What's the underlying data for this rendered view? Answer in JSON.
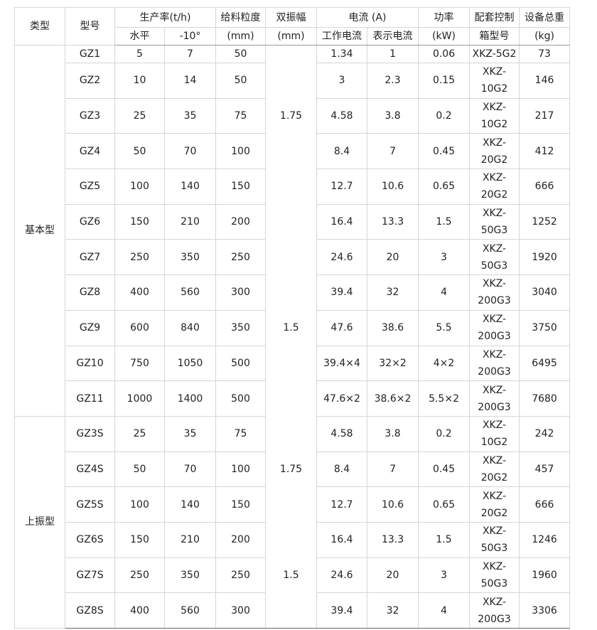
{
  "header": {
    "type": "类型",
    "model": "型号",
    "capacity": "生产率(t/h)",
    "cap_h": "水平",
    "cap_10": "-10°",
    "feed": "给料粒度",
    "feed_unit": "(mm)",
    "amp": "双振幅",
    "amp_unit": "(mm)",
    "current": "电流 (A)",
    "cur_work": "工作电流",
    "cur_ind": "表示电流",
    "power": "功率",
    "power_unit": "(kW)",
    "ctrl": "配套控制",
    "ctrl2": "箱型号",
    "weight": "设备总重",
    "weight_unit": "(kg)"
  },
  "groups": [
    {
      "type": "基本型",
      "rows": [
        [
          "GZ1",
          "5",
          "7",
          "50",
          "",
          "1.34",
          "1",
          "0.06",
          "XKZ-5G2",
          "73"
        ],
        [
          "GZ2",
          "10",
          "14",
          "50",
          "",
          "3",
          "2.3",
          "0.15",
          "XKZ-\n10G2",
          "146"
        ],
        [
          "GZ3",
          "25",
          "35",
          "75",
          "1.75",
          "4.58",
          "3.8",
          "0.2",
          "XKZ-\n10G2",
          "217"
        ],
        [
          "GZ4",
          "50",
          "70",
          "100",
          "",
          "8.4",
          "7",
          "0.45",
          "XKZ-\n20G2",
          "412"
        ],
        [
          "GZ5",
          "100",
          "140",
          "150",
          "",
          "12.7",
          "10.6",
          "0.65",
          "XKZ-\n20G2",
          "666"
        ],
        [
          "GZ6",
          "150",
          "210",
          "200",
          "",
          "16.4",
          "13.3",
          "1.5",
          "XKZ-\n50G3",
          "1252"
        ],
        [
          "GZ7",
          "250",
          "350",
          "250",
          "",
          "24.6",
          "20",
          "3",
          "XKZ-\n50G3",
          "1920"
        ],
        [
          "GZ8",
          "400",
          "560",
          "300",
          "",
          "39.4",
          "32",
          "4",
          "XKZ-\n200G3",
          "3040"
        ],
        [
          "GZ9",
          "600",
          "840",
          "350",
          "1.5",
          "47.6",
          "38.6",
          "5.5",
          "XKZ-\n200G3",
          "3750"
        ],
        [
          "GZ10",
          "750",
          "1050",
          "500",
          "",
          "39.4×4",
          "32×2",
          "4×2",
          "XKZ-\n200G3",
          "6495"
        ],
        [
          "GZ11",
          "1000",
          "1400",
          "500",
          "",
          "47.6×2",
          "38.6×2",
          "5.5×2",
          "XKZ-\n200G3",
          "7680"
        ]
      ]
    },
    {
      "type": "上振型",
      "rows": [
        [
          "GZ3S",
          "25",
          "35",
          "75",
          "",
          "4.58",
          "3.8",
          "0.2",
          "XKZ-\n10G2",
          "242"
        ],
        [
          "GZ4S",
          "50",
          "70",
          "100",
          "1.75",
          "8.4",
          "7",
          "0.45",
          "XKZ-\n20G2",
          "457"
        ],
        [
          "GZ5S",
          "100",
          "140",
          "150",
          "",
          "12.7",
          "10.6",
          "0.65",
          "XKZ-\n20G2",
          "666"
        ],
        [
          "GZ6S",
          "150",
          "210",
          "200",
          "",
          "16.4",
          "13.3",
          "1.5",
          "XKZ-\n50G3",
          "1246"
        ],
        [
          "GZ7S",
          "250",
          "350",
          "250",
          "1.5",
          "24.6",
          "20",
          "3",
          "XKZ-\n50G3",
          "1960"
        ],
        [
          "GZ8S",
          "400",
          "560",
          "300",
          "",
          "39.4",
          "32",
          "4",
          "XKZ-\n200G3",
          "3306"
        ]
      ]
    }
  ]
}
